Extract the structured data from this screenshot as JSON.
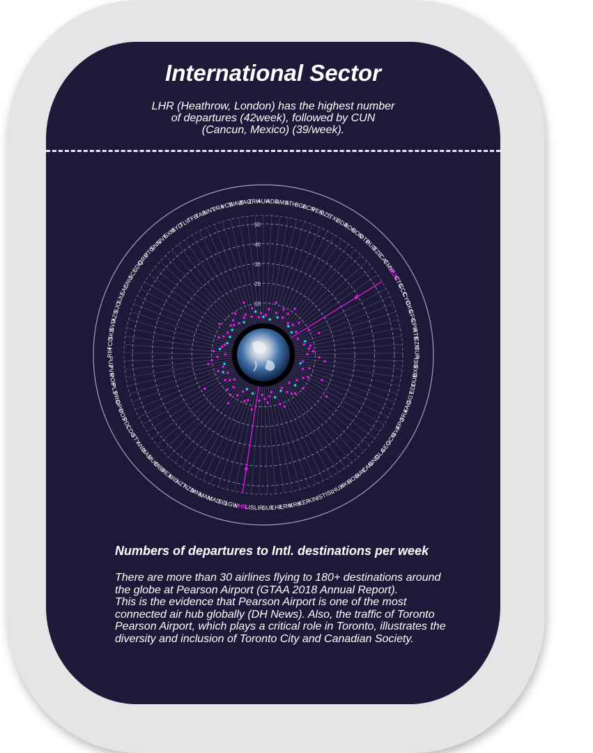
{
  "header": {
    "title": "International Sector",
    "subtitle": "LHR (Heathrow, London) has the highest number of departures (42week), followed by CUN (Cancun, Mexico) (39/week)."
  },
  "colors": {
    "background": "#1d1a39",
    "frame": "#e5e5e8",
    "highlight": "#e11ce0",
    "dot_pink": "#e11ce0",
    "dot_cyan": "#20d8e0",
    "ring": "#a7a4b8"
  },
  "chart_data": {
    "type": "radial-scatter",
    "title": "Numbers of departures to Intl. destinations per week",
    "radial_ticks": [
      10,
      20,
      30,
      40,
      50
    ],
    "rlim": [
      0,
      50
    ],
    "highlighted": [
      "CUN",
      "LHR"
    ],
    "categories": [
      "AUH",
      "ADD",
      "AMS",
      "ATH",
      "BGI",
      "BCN",
      "PEK",
      "BZE",
      "TXL",
      "BDA",
      "BOG",
      "BON",
      "OTP",
      "BUD",
      "EZE",
      "CAI",
      "CMW",
      "CUN",
      "CTG",
      "CCC",
      "CYO",
      "CKG",
      "CFG",
      "CPH",
      "RTB",
      "CZM",
      "CUR",
      "DEL",
      "DXB",
      "DUB",
      "EDI",
      "GGT",
      "FAO",
      "FRA",
      "FPO",
      "GVA",
      "GCM",
      "GEO",
      "GLA",
      "GND",
      "CAN",
      "HAV",
      "HOG",
      "HKG",
      "HUX",
      "ISL",
      "IST",
      "KIN",
      "KEF",
      "KRK",
      "LRM",
      "LHE",
      "SUF",
      "LIR",
      "LIS",
      "LHR",
      "LGW",
      "SID",
      "MAD",
      "MAN",
      "MNL",
      "NZD",
      "NZT",
      "MID",
      "MEX",
      "MBJ",
      "MUC",
      "NAS",
      "ANU",
      "FTY",
      "CDG",
      "PDL",
      "POS",
      "OPO",
      "PRG",
      "PLS",
      "POP",
      "PVR",
      "PUJ",
      "RIH",
      "FCO",
      "SKB",
      "SVD",
      "AZS",
      "SJO",
      "SJU",
      "SAL",
      "SNU",
      "SCL",
      "SDQ",
      "GRU",
      "PTG",
      "SNN",
      "UVF",
      "SXM",
      "SYD",
      "TLV",
      "TFB",
      "TAB",
      "NNT",
      "VRA",
      "VCE",
      "WAW",
      "ZAG",
      "ZRH"
    ],
    "values": [
      3,
      4,
      7,
      2,
      11,
      6,
      4,
      9,
      5,
      8,
      12,
      4,
      3,
      5,
      8,
      2,
      4,
      39,
      10,
      3,
      14,
      6,
      5,
      8,
      7,
      9,
      6,
      12,
      15,
      4,
      3,
      8,
      5,
      16,
      9,
      7,
      22,
      5,
      10,
      6,
      3,
      9,
      8,
      6,
      3,
      4,
      12,
      10,
      6,
      3,
      5,
      8,
      6,
      4,
      7,
      42,
      12,
      4,
      8,
      9,
      3,
      5,
      8,
      14,
      10,
      6,
      9,
      3,
      5,
      7,
      18,
      4,
      6,
      8,
      5,
      4,
      12,
      10,
      7,
      3,
      9,
      6,
      5,
      4,
      3,
      8,
      6,
      3,
      5,
      11,
      4,
      6,
      5,
      7,
      4,
      9,
      3,
      5,
      6,
      12,
      4,
      8,
      6,
      3,
      5
    ]
  },
  "footer": {
    "chart_title": "Numbers of departures to Intl. destinations per week",
    "paragraph1": "There are more than 30 airlines flying to 180+ destinations around the globe at Pearson Airport (GTAA 2018 Annual Report).",
    "paragraph2": "This is the evidence that Pearson Airport is one of the most connected air hub globally (DH News). Also, the traffic of Toronto Pearson Airport, which plays a critical role in Toronto, illustrates the diversity and inclusion of Toronto City and Canadian Society."
  }
}
